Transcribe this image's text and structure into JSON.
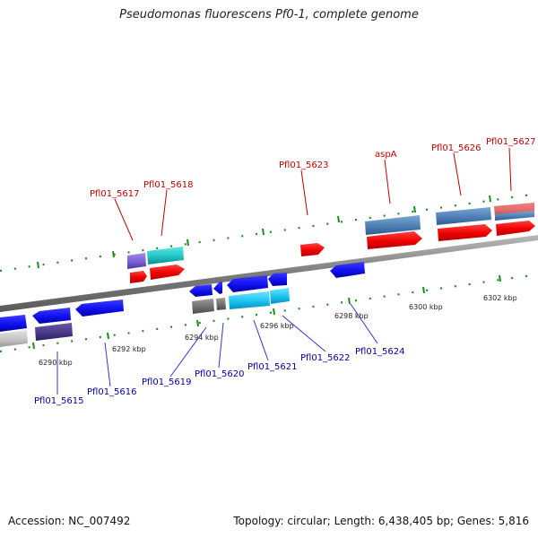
{
  "title": "Pseudomonas fluorescens Pf0-1, complete genome",
  "footer": {
    "accession": "Accession: NC_007492",
    "summary": "Topology: circular; Length: 6,438,405 bp; Genes: 5,816"
  },
  "colors": {
    "backbone": "#8a8a8a",
    "tick": "#1e8c1e",
    "tick_label": "#222222",
    "upper_label": "#c00000",
    "lower_label": "#0000a0",
    "leader": "#3333cc"
  },
  "ticks": [
    "6290 kbp",
    "6292 kbp",
    "6294 kbp",
    "6296 kbp",
    "6298 kbp",
    "6300 kbp",
    "6302 kbp"
  ],
  "upper_labels": [
    "Pfl01_5617",
    "Pfl01_5618",
    "Pfl01_5623",
    "aspA",
    "Pfl01_5626",
    "Pfl01_5627"
  ],
  "lower_labels": [
    "Pfl01_5615",
    "Pfl01_5616",
    "Pfl01_5619",
    "Pfl01_5620",
    "Pfl01_5621",
    "Pfl01_5622",
    "Pfl01_5624"
  ]
}
